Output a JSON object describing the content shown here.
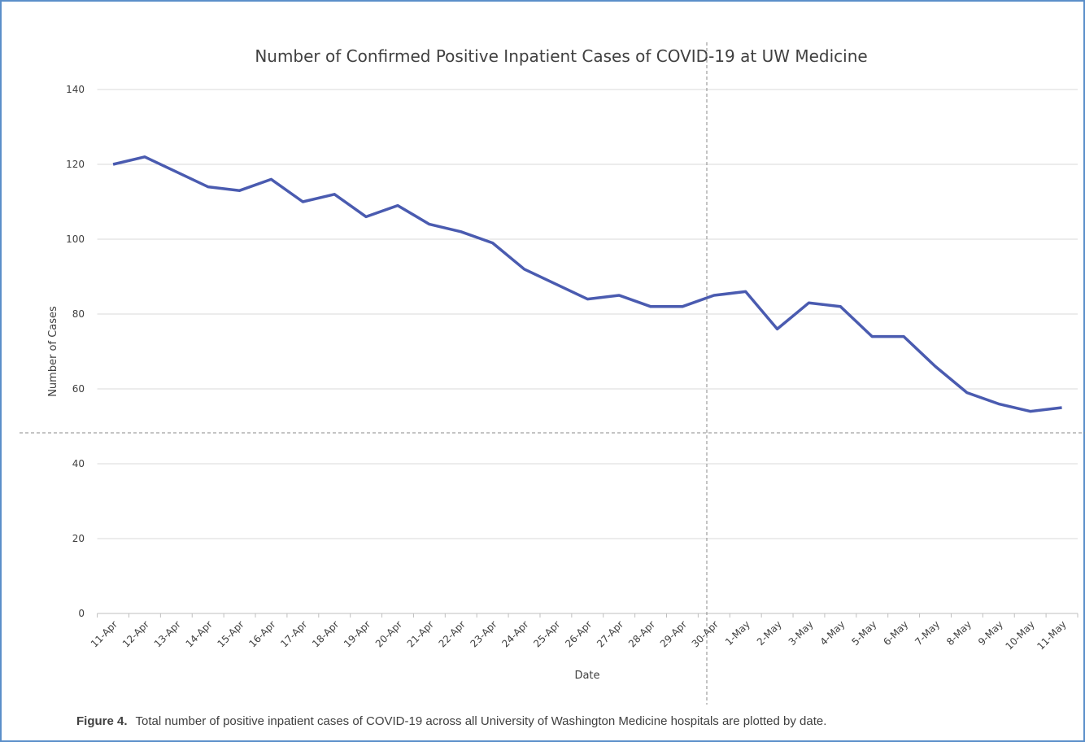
{
  "chart_data": {
    "type": "line",
    "title": "Number of Confirmed Positive Inpatient Cases of COVID-19 at UW Medicine",
    "x_label": "Date",
    "y_label": "Number of Cases",
    "categories": [
      "11-Apr",
      "12-Apr",
      "13-Apr",
      "14-Apr",
      "15-Apr",
      "16-Apr",
      "17-Apr",
      "18-Apr",
      "19-Apr",
      "20-Apr",
      "21-Apr",
      "22-Apr",
      "23-Apr",
      "24-Apr",
      "25-Apr",
      "26-Apr",
      "27-Apr",
      "28-Apr",
      "29-Apr",
      "30-Apr",
      "1-May",
      "2-May",
      "3-May",
      "4-May",
      "5-May",
      "6-May",
      "7-May",
      "8-May",
      "9-May",
      "10-May",
      "11-May"
    ],
    "series": [
      {
        "name": "Cases",
        "color": "#4a5bb0",
        "values": [
          120,
          122,
          118,
          114,
          113,
          116,
          110,
          112,
          106,
          109,
          104,
          102,
          99,
          92,
          88,
          84,
          85,
          82,
          82,
          85,
          86,
          76,
          83,
          82,
          74,
          74,
          66,
          59,
          56,
          54,
          55
        ]
      }
    ],
    "ylim": [
      0,
      140
    ],
    "yticks": [
      0,
      20,
      40,
      60,
      80,
      100,
      120,
      140
    ],
    "grid": true
  },
  "caption": {
    "label": "Figure 4.",
    "text": "Total number of positive inpatient cases of COVID-19 across all University of Washington Medicine hospitals are plotted by date."
  }
}
